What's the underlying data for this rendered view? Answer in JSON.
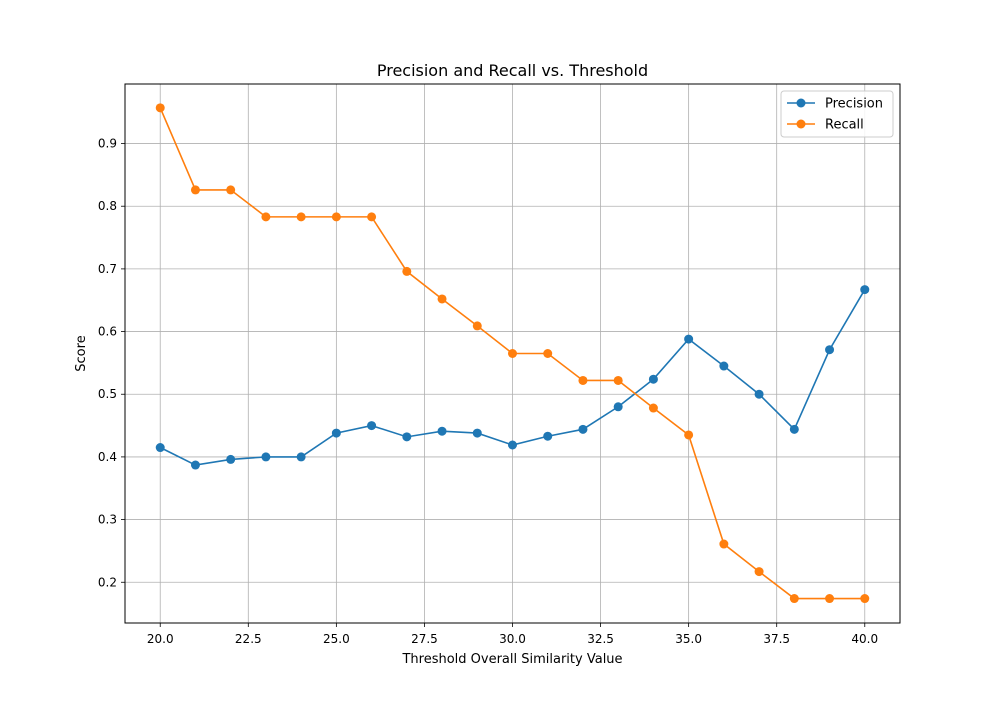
{
  "chart_data": {
    "type": "line",
    "title": "Precision and Recall vs. Threshold",
    "xlabel": "Threshold Overall Similarity Value",
    "ylabel": "Score",
    "xlim": [
      19.0,
      41.0
    ],
    "ylim": [
      0.135,
      0.995
    ],
    "grid": true,
    "legend_position": "top-right",
    "x": [
      20,
      21,
      22,
      23,
      24,
      25,
      26,
      27,
      28,
      29,
      30,
      31,
      32,
      33,
      34,
      35,
      36,
      37,
      38,
      39,
      40
    ],
    "x_ticks": [
      {
        "value": 20.0,
        "label": "20.0"
      },
      {
        "value": 22.5,
        "label": "22.5"
      },
      {
        "value": 25.0,
        "label": "25.0"
      },
      {
        "value": 27.5,
        "label": "27.5"
      },
      {
        "value": 30.0,
        "label": "30.0"
      },
      {
        "value": 32.5,
        "label": "32.5"
      },
      {
        "value": 35.0,
        "label": "35.0"
      },
      {
        "value": 37.5,
        "label": "37.5"
      },
      {
        "value": 40.0,
        "label": "40.0"
      }
    ],
    "y_ticks": [
      {
        "value": 0.2,
        "label": "0.2"
      },
      {
        "value": 0.3,
        "label": "0.3"
      },
      {
        "value": 0.4,
        "label": "0.4"
      },
      {
        "value": 0.5,
        "label": "0.5"
      },
      {
        "value": 0.6,
        "label": "0.6"
      },
      {
        "value": 0.7,
        "label": "0.7"
      },
      {
        "value": 0.8,
        "label": "0.8"
      },
      {
        "value": 0.9,
        "label": "0.9"
      }
    ],
    "series": [
      {
        "name": "Precision",
        "color": "#1f77b4",
        "values": [
          0.415,
          0.387,
          0.396,
          0.4,
          0.4,
          0.438,
          0.45,
          0.432,
          0.441,
          0.438,
          0.419,
          0.433,
          0.444,
          0.48,
          0.524,
          0.588,
          0.545,
          0.5,
          0.444,
          0.571,
          0.667
        ]
      },
      {
        "name": "Recall",
        "color": "#ff7f0e",
        "values": [
          0.957,
          0.826,
          0.826,
          0.783,
          0.783,
          0.783,
          0.783,
          0.696,
          0.652,
          0.609,
          0.565,
          0.565,
          0.522,
          0.522,
          0.478,
          0.435,
          0.261,
          0.217,
          0.174,
          0.174,
          0.174
        ]
      }
    ]
  }
}
